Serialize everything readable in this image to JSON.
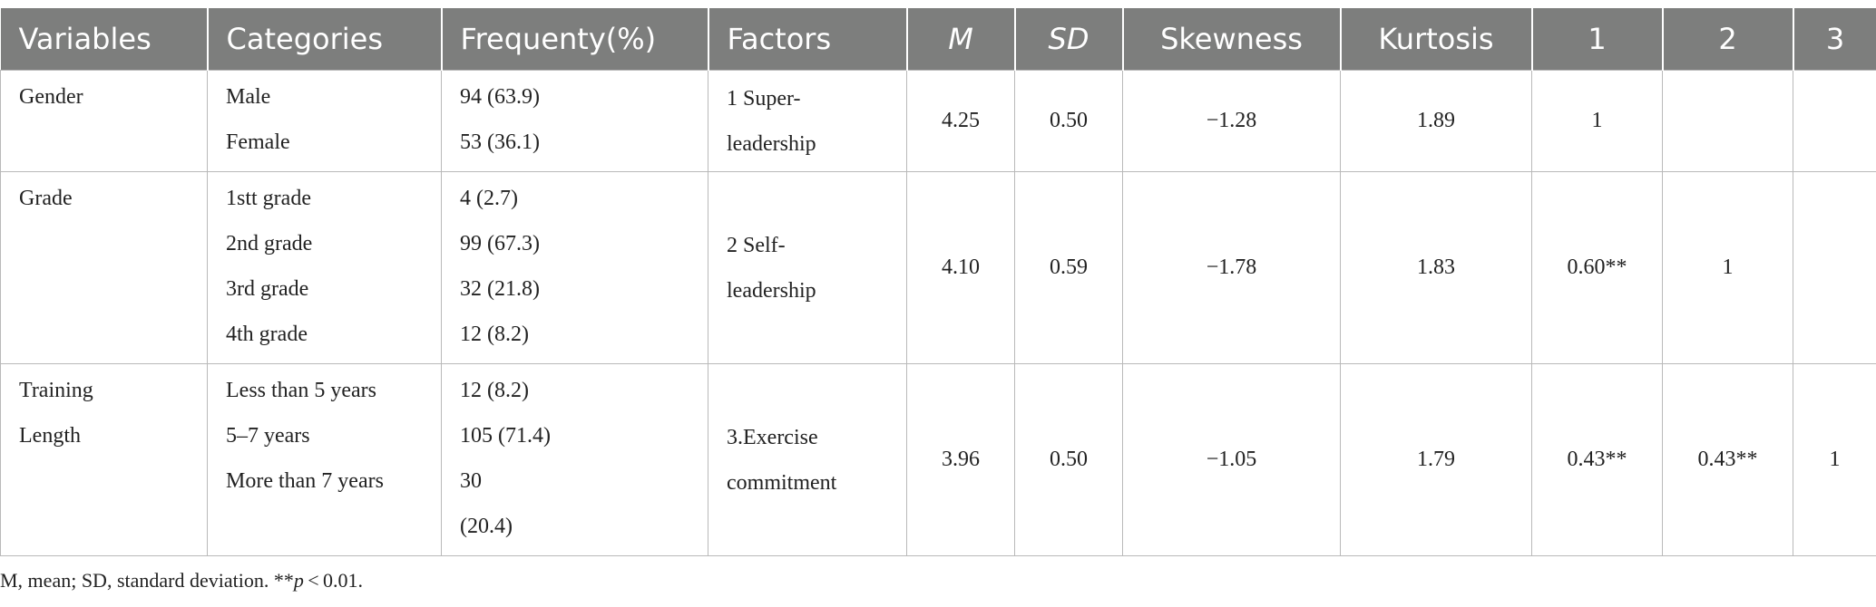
{
  "headers": {
    "variables": "Variables",
    "categories": "Categories",
    "frequency": "Frequenty(%)",
    "factors": "Factors",
    "m": "M",
    "sd": "SD",
    "skewness": "Skewness",
    "kurtosis": "Kurtosis",
    "c1": "1",
    "c2": "2",
    "c3": "3"
  },
  "rows": [
    {
      "variable": [
        "Gender"
      ],
      "categories": [
        "Male",
        "Female"
      ],
      "frequencies": [
        "94 (63.9)",
        "53 (36.1)"
      ],
      "factor": [
        "1 Super-",
        "leadership"
      ],
      "m": "4.25",
      "sd": "0.50",
      "skewness": "−1.28",
      "kurtosis": "1.89",
      "c1": "1",
      "c2": "",
      "c3": ""
    },
    {
      "variable": [
        "Grade"
      ],
      "categories": [
        "1stt grade",
        "2nd grade",
        "3rd grade",
        "4th grade"
      ],
      "frequencies": [
        "4 (2.7)",
        "99 (67.3)",
        "32 (21.8)",
        "12 (8.2)"
      ],
      "factor": [
        "2 Self-",
        "leadership"
      ],
      "m": "4.10",
      "sd": "0.59",
      "skewness": "−1.78",
      "kurtosis": "1.83",
      "c1": "0.60**",
      "c2": "1",
      "c3": ""
    },
    {
      "variable": [
        "Training",
        "Length"
      ],
      "categories": [
        "Less than 5 years",
        "5–7 years",
        "More than 7 years"
      ],
      "frequencies": [
        "12 (8.2)",
        "105 (71.4)",
        "30",
        "(20.4)"
      ],
      "factor": [
        "3.Exercise",
        "commitment"
      ],
      "m": "3.96",
      "sd": "0.50",
      "skewness": "−1.05",
      "kurtosis": "1.79",
      "c1": "0.43**",
      "c2": "0.43**",
      "c3": "1"
    }
  ],
  "footnote": {
    "prefix": "M, mean; SD, standard deviation. **",
    "p": "p",
    "suffix": " < 0.01."
  }
}
